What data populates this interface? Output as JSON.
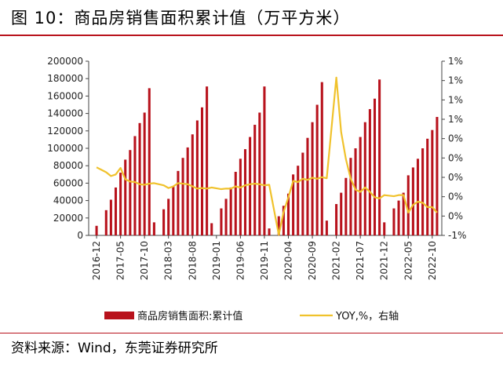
{
  "title": "图 10：商品房销售面积累计值（万平方米）",
  "source": "资料来源：Wind，东莞证券研究所",
  "chart_data": {
    "type": "bar",
    "title": "图 10：商品房销售面积累计值（万平方米）",
    "x_tick_labels": [
      "2016-12",
      "2017-05",
      "2017-10",
      "2018-03",
      "2018-08",
      "2019-01",
      "2019-06",
      "2019-11",
      "2020-04",
      "2020-09",
      "2021-02",
      "2021-07",
      "2021-12",
      "2022-05",
      "2022-10"
    ],
    "y_left": {
      "ylim": [
        0,
        200000
      ],
      "ticks": [
        "0",
        "20000",
        "40000",
        "60000",
        "80000",
        "100000",
        "120000",
        "140000",
        "160000",
        "180000",
        "200000"
      ]
    },
    "y_right": {
      "ticks": [
        "1%",
        "1%",
        "1%",
        "1%",
        "0%",
        "0%",
        "0%",
        "0%",
        "0%",
        "-1%"
      ],
      "axis": "右轴"
    },
    "grid": false,
    "legend_position": "bottom",
    "series": [
      {
        "name": "商品房销售面积:累计值",
        "type": "bar",
        "color": "#b8121c",
        "x": [
          "2016-12",
          "2017-02",
          "2017-03",
          "2017-04",
          "2017-05",
          "2017-06",
          "2017-07",
          "2017-08",
          "2017-09",
          "2017-10",
          "2017-11",
          "2017-12",
          "2018-02",
          "2018-03",
          "2018-04",
          "2018-05",
          "2018-06",
          "2018-07",
          "2018-08",
          "2018-09",
          "2018-10",
          "2018-11",
          "2018-12",
          "2019-02",
          "2019-03",
          "2019-04",
          "2019-05",
          "2019-06",
          "2019-07",
          "2019-08",
          "2019-09",
          "2019-10",
          "2019-11",
          "2019-12",
          "2020-02",
          "2020-03",
          "2020-04",
          "2020-05",
          "2020-06",
          "2020-07",
          "2020-08",
          "2020-09",
          "2020-10",
          "2020-11",
          "2020-12",
          "2021-02",
          "2021-03",
          "2021-04",
          "2021-05",
          "2021-06",
          "2021-07",
          "2021-08",
          "2021-09",
          "2021-10",
          "2021-11",
          "2021-12",
          "2022-02",
          "2022-03",
          "2022-04",
          "2022-05",
          "2022-06",
          "2022-07",
          "2022-08",
          "2022-09",
          "2022-10",
          "2022-11"
        ],
        "values": [
          11000,
          29000,
          41000,
          55000,
          72000,
          87000,
          98000,
          114000,
          129000,
          141000,
          169000,
          15000,
          30000,
          42000,
          56000,
          74000,
          89000,
          101000,
          116000,
          132000,
          147000,
          171000,
          14000,
          31000,
          42000,
          55000,
          73000,
          88000,
          99000,
          113000,
          127000,
          141000,
          171000,
          8000,
          22000,
          34000,
          48000,
          70000,
          80000,
          95000,
          112000,
          130000,
          150000,
          176000,
          17000,
          36000,
          49000,
          66000,
          89000,
          100000,
          113000,
          130000,
          145000,
          157000,
          179000,
          15000,
          31000,
          40000,
          49000,
          69000,
          78000,
          88000,
          100000,
          111000,
          121000,
          136000
        ]
      },
      {
        "name": "YOY,%，右轴",
        "type": "line",
        "color": "#f0c22c",
        "x": [
          "2016-12",
          "2017-02",
          "2017-03",
          "2017-04",
          "2017-05",
          "2017-06",
          "2017-07",
          "2017-08",
          "2017-09",
          "2017-10",
          "2017-11",
          "2017-12",
          "2018-02",
          "2018-03",
          "2018-04",
          "2018-05",
          "2018-06",
          "2018-07",
          "2018-08",
          "2018-09",
          "2018-10",
          "2018-11",
          "2018-12",
          "2019-02",
          "2019-03",
          "2019-04",
          "2019-05",
          "2019-06",
          "2019-07",
          "2019-08",
          "2019-09",
          "2019-10",
          "2019-11",
          "2019-12",
          "2020-02",
          "2020-03",
          "2020-04",
          "2020-05",
          "2020-06",
          "2020-07",
          "2020-08",
          "2020-09",
          "2020-10",
          "2020-11",
          "2020-12",
          "2021-02",
          "2021-03",
          "2021-04",
          "2021-05",
          "2021-06",
          "2021-07",
          "2021-08",
          "2021-09",
          "2021-10",
          "2021-11",
          "2021-12",
          "2022-02",
          "2022-03",
          "2022-04",
          "2022-05",
          "2022-06",
          "2022-07",
          "2022-08",
          "2022-09",
          "2022-10",
          "2022-11"
        ],
        "values": [
          0.225,
          0.18,
          0.145,
          0.16,
          0.22,
          0.115,
          0.095,
          0.09,
          0.07,
          0.065,
          0.075,
          0.08,
          0.06,
          0.035,
          0.05,
          0.08,
          0.075,
          0.07,
          0.05,
          0.03,
          0.035,
          0.03,
          0.04,
          0.025,
          0.03,
          0.03,
          0.05,
          0.04,
          0.06,
          0.07,
          0.075,
          0.07,
          0.06,
          0.065,
          -0.395,
          -0.185,
          -0.05,
          0.1,
          0.09,
          0.12,
          0.11,
          0.13,
          0.12,
          0.135,
          0.125,
          1.05,
          0.55,
          0.3,
          0.12,
          0.02,
          0.0,
          0.04,
          0.0,
          -0.05,
          -0.06,
          -0.03,
          -0.04,
          -0.03,
          -0.03,
          -0.19,
          -0.12,
          -0.09,
          -0.1,
          -0.14,
          -0.14,
          -0.19
        ]
      }
    ]
  }
}
